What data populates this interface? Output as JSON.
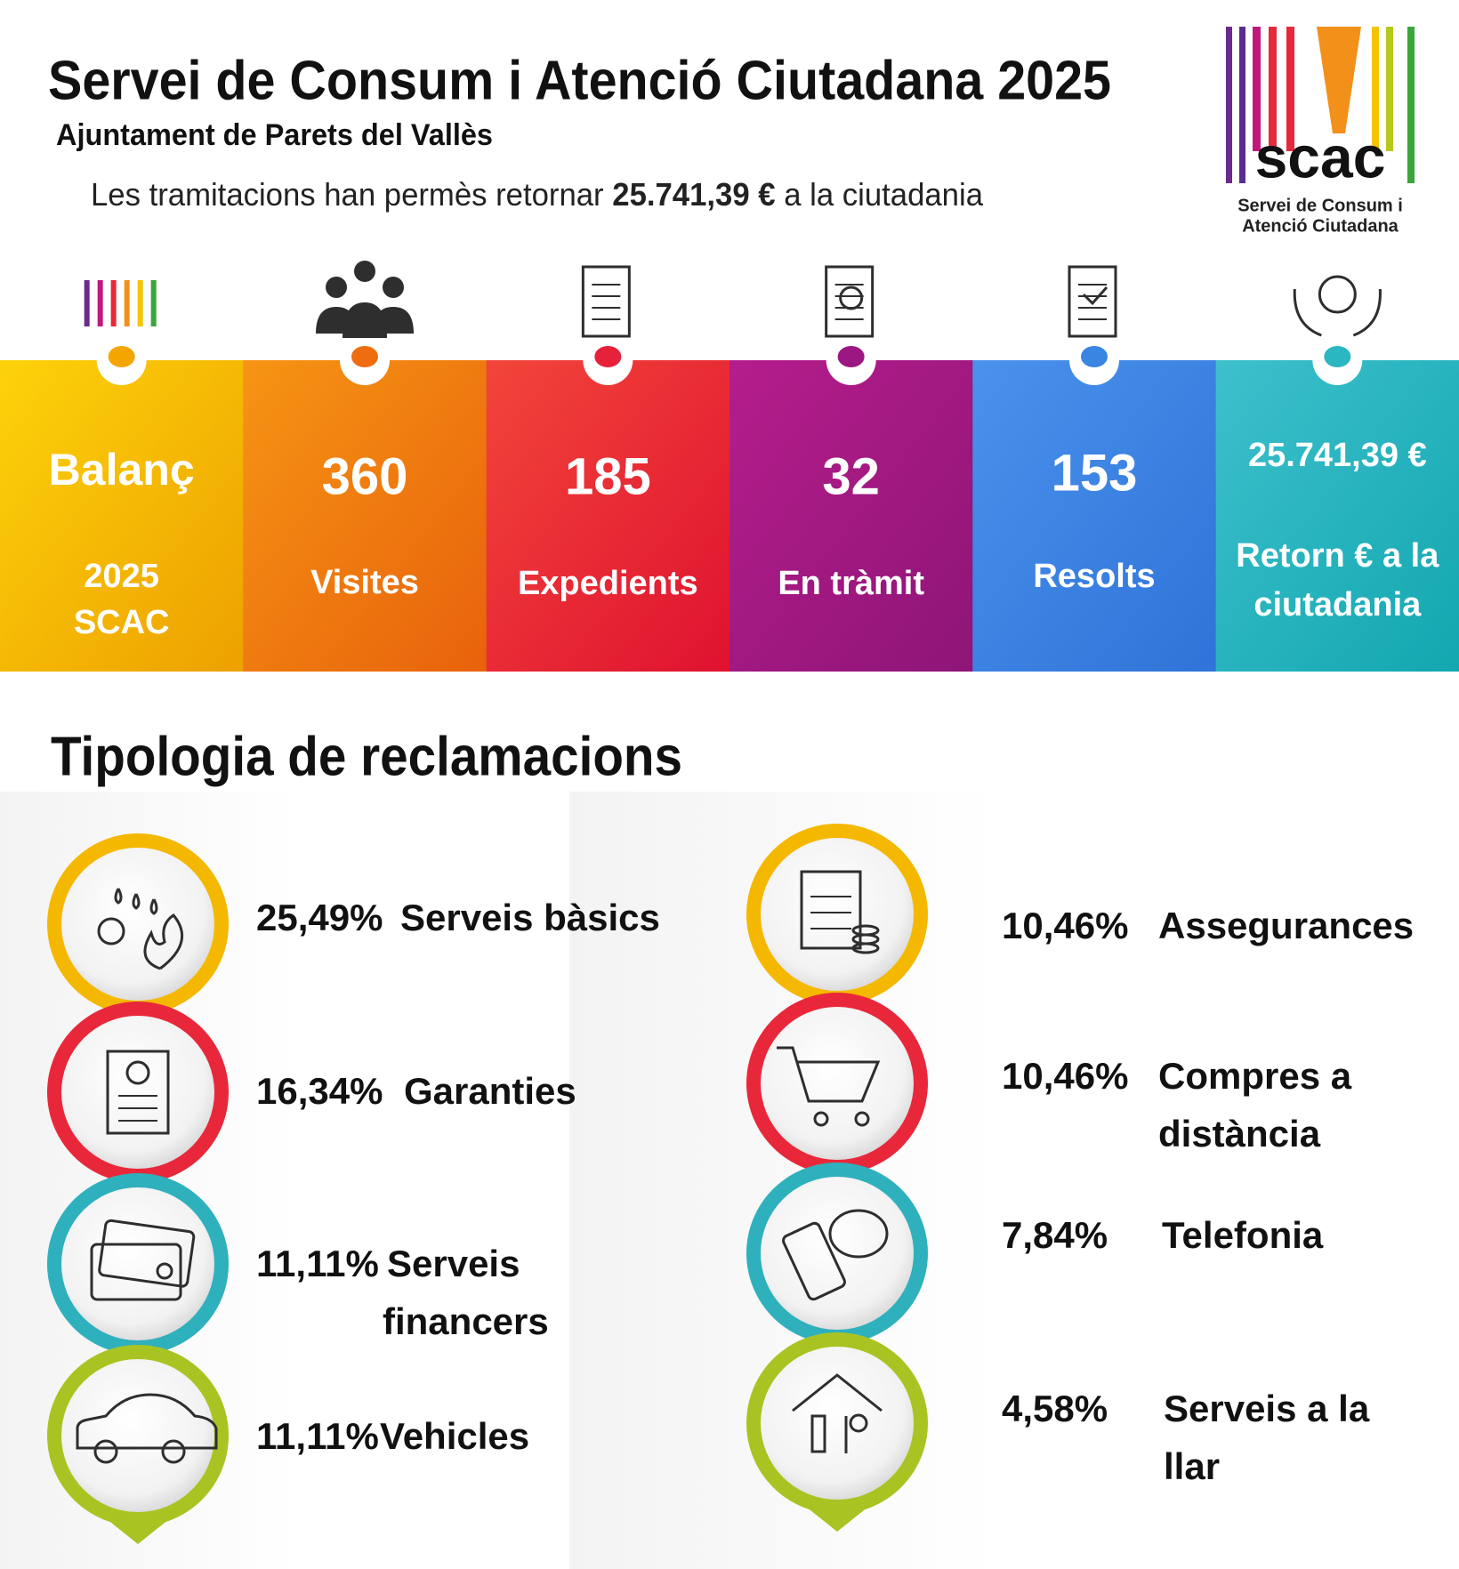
{
  "header": {
    "title": "Servei de Consum i Atenció Ciutadana 2025",
    "subtitle": "Ajuntament de Parets del Vallès",
    "summary": {
      "before": "Les tramitacions han permès retornar",
      "amount": "25.741,39 €",
      "after": "a la ciutadania"
    }
  },
  "logo": {
    "wordmark": "scac",
    "caption_lines": [
      "Servei de Consum i",
      "Atenció Ciutadana"
    ]
  },
  "panels": [
    {
      "value": "Balanç",
      "lines": [
        "2025",
        "SCAC"
      ]
    },
    {
      "value": 360,
      "lines": [
        "Visites"
      ]
    },
    {
      "value": 185,
      "lines": [
        "Expedients"
      ]
    },
    {
      "value": 32,
      "lines": [
        "En tràmit"
      ]
    },
    {
      "value": 153,
      "lines": [
        "Resolts"
      ]
    },
    {
      "value": "25.741,39 €",
      "lines": [
        "Retorn € a la",
        "ciutadania"
      ]
    }
  ],
  "section": {
    "title": "Tipologia de reclamacions"
  },
  "items": [
    {
      "percent": "25,49%",
      "label_lines": [
        "Serveis bàsics"
      ]
    },
    {
      "percent": "16,34%",
      "label_lines": [
        "Garanties"
      ]
    },
    {
      "percent": "11,11%",
      "label_lines": [
        "Serveis",
        "financers"
      ]
    },
    {
      "percent": "11,11%",
      "label_lines": [
        "Vehicles"
      ]
    },
    {
      "percent": "10,46%",
      "label_lines": [
        "Assegurances"
      ]
    },
    {
      "percent": "10,46%",
      "label_lines": [
        "Compres a",
        "distància"
      ]
    },
    {
      "percent": "7,84%",
      "label_lines": [
        "Telefonia"
      ]
    },
    {
      "percent": "4,58%",
      "label_lines": [
        "Serveis a la",
        "llar"
      ]
    }
  ]
}
